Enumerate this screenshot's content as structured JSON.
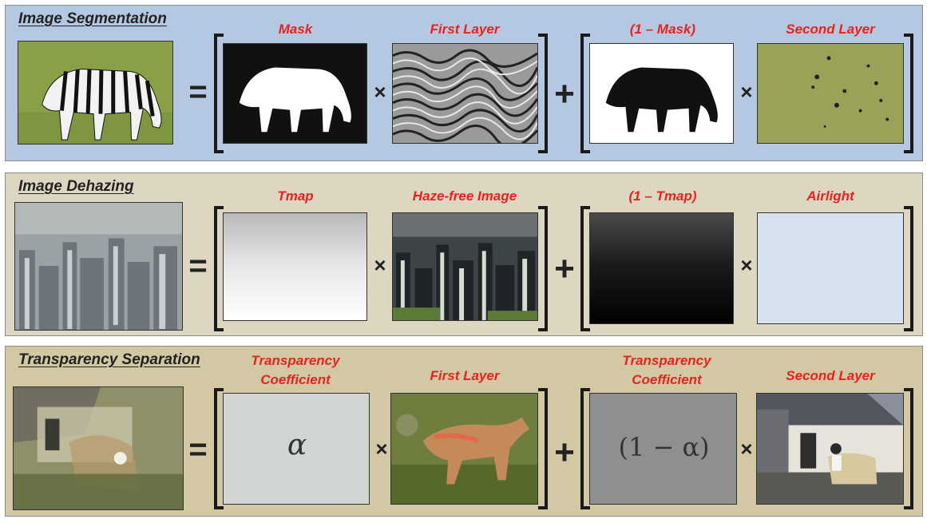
{
  "rows": [
    {
      "title": "Image Segmentation",
      "labels": {
        "first_factor": "Mask",
        "first_layer": "First Layer",
        "second_factor": "(1 – Mask)",
        "second_layer": "Second Layer"
      }
    },
    {
      "title": "Image Dehazing",
      "labels": {
        "first_factor": "Tmap",
        "first_layer": "Haze-free Image",
        "second_factor": "(1 – Tmap)",
        "second_layer": "Airlight"
      }
    },
    {
      "title": "Transparency Separation",
      "labels": {
        "first_factor_line1": "Transparency",
        "first_factor_line2": "Coefficient",
        "first_layer": "First Layer",
        "second_factor_line1": "Transparency",
        "second_factor_line2": "Coefficient",
        "second_layer": "Second Layer"
      }
    }
  ],
  "operators": {
    "equals": "=",
    "times": "×",
    "plus": "+"
  },
  "symbols": {
    "alpha": "α",
    "one_minus_alpha": "(1 − α)"
  },
  "colors": {
    "label_red": "#e8231f",
    "panel1_bg": "#b5c8e2",
    "panel2_bg": "#ddd6c1",
    "panel3_bg": "#d2c8a3"
  }
}
